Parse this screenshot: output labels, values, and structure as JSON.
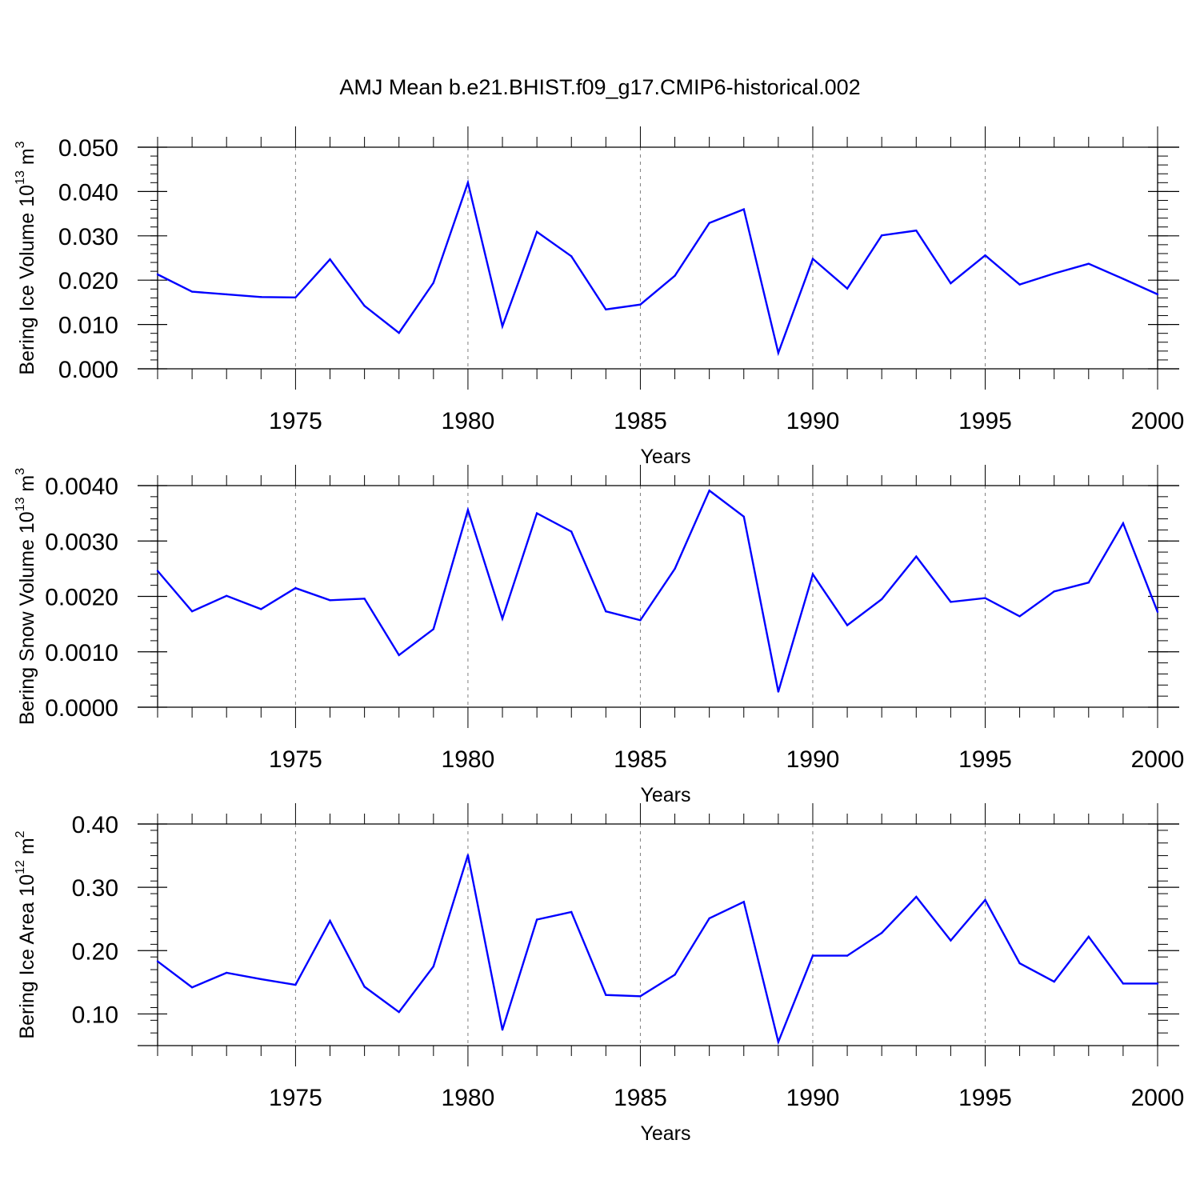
{
  "title": "AMJ Mean b.e21.BHIST.f09_g17.CMIP6-historical.002",
  "colors": {
    "line": "#0000ff",
    "axis": "#000000",
    "grid": "#808080"
  },
  "chart_data": [
    {
      "type": "line",
      "ylabel": {
        "main": "Bering Ice Volume 10",
        "exp": "13",
        "unit": " m",
        "unit_exp": "3"
      },
      "xlabel": "Years",
      "xlim": [
        1971,
        2000
      ],
      "ylim": [
        0.0,
        0.05
      ],
      "xticks": [
        1975,
        1980,
        1985,
        1990,
        1995,
        2000
      ],
      "yticks": [
        0.0,
        0.01,
        0.02,
        0.03,
        0.04,
        0.05
      ],
      "ytick_labels": [
        "0.000",
        "0.010",
        "0.020",
        "0.030",
        "0.040",
        "0.050"
      ],
      "grid": "x-dashed",
      "series": [
        {
          "x": [
            1971,
            1972,
            1973,
            1974,
            1975,
            1976,
            1977,
            1978,
            1979,
            1980,
            1981,
            1982,
            1983,
            1984,
            1985,
            1986,
            1987,
            1988,
            1989,
            1990,
            1991,
            1992,
            1993,
            1994,
            1995,
            1996,
            1997,
            1998,
            1999,
            2000
          ],
          "values": [
            0.0213,
            0.0174,
            0.0168,
            0.0162,
            0.0161,
            0.0247,
            0.0142,
            0.0081,
            0.0194,
            0.042,
            0.0096,
            0.0309,
            0.0254,
            0.0134,
            0.0145,
            0.021,
            0.0329,
            0.036,
            0.0036,
            0.0248,
            0.0181,
            0.0301,
            0.0312,
            0.0193,
            0.0256,
            0.019,
            0.0215,
            0.0237,
            0.0203,
            0.0168
          ]
        }
      ]
    },
    {
      "type": "line",
      "ylabel": {
        "main": "Bering Snow Volume 10",
        "exp": "13",
        "unit": " m",
        "unit_exp": "3"
      },
      "xlabel": "Years",
      "xlim": [
        1971,
        2000
      ],
      "ylim": [
        0.0,
        0.004
      ],
      "xticks": [
        1975,
        1980,
        1985,
        1990,
        1995,
        2000
      ],
      "yticks": [
        0.0,
        0.001,
        0.002,
        0.003,
        0.004
      ],
      "ytick_labels": [
        "0.0000",
        "0.0010",
        "0.0020",
        "0.0030",
        "0.0040"
      ],
      "grid": "x-dashed",
      "series": [
        {
          "x": [
            1971,
            1972,
            1973,
            1974,
            1975,
            1976,
            1977,
            1978,
            1979,
            1980,
            1981,
            1982,
            1983,
            1984,
            1985,
            1986,
            1987,
            1988,
            1989,
            1990,
            1991,
            1992,
            1993,
            1994,
            1995,
            1996,
            1997,
            1998,
            1999,
            2000
          ],
          "values": [
            0.00246,
            0.00173,
            0.00201,
            0.00177,
            0.00215,
            0.00193,
            0.00196,
            0.00094,
            0.00141,
            0.00356,
            0.0016,
            0.0035,
            0.00317,
            0.00173,
            0.00157,
            0.0025,
            0.00391,
            0.00344,
            0.00028,
            0.0024,
            0.00148,
            0.00195,
            0.00272,
            0.0019,
            0.00197,
            0.00164,
            0.00209,
            0.00225,
            0.00332,
            0.00172
          ]
        }
      ]
    },
    {
      "type": "line",
      "ylabel": {
        "main": "Bering Ice Area 10",
        "exp": "12",
        "unit": " m",
        "unit_exp": "2"
      },
      "xlabel": "Years",
      "xlim": [
        1971,
        2000
      ],
      "ylim": [
        0.05,
        0.4
      ],
      "xticks": [
        1975,
        1980,
        1985,
        1990,
        1995,
        2000
      ],
      "yticks": [
        0.1,
        0.2,
        0.3,
        0.4
      ],
      "ytick_labels": [
        "0.10",
        "0.20",
        "0.30",
        "0.40"
      ],
      "grid": "x-dashed",
      "series": [
        {
          "x": [
            1971,
            1972,
            1973,
            1974,
            1975,
            1976,
            1977,
            1978,
            1979,
            1980,
            1981,
            1982,
            1983,
            1984,
            1985,
            1986,
            1987,
            1988,
            1989,
            1990,
            1991,
            1992,
            1993,
            1994,
            1995,
            1996,
            1997,
            1998,
            1999,
            2000
          ],
          "values": [
            0.183,
            0.142,
            0.165,
            0.155,
            0.146,
            0.247,
            0.143,
            0.103,
            0.175,
            0.351,
            0.075,
            0.249,
            0.261,
            0.13,
            0.128,
            0.162,
            0.251,
            0.277,
            0.056,
            0.192,
            0.192,
            0.228,
            0.285,
            0.216,
            0.28,
            0.18,
            0.151,
            0.222,
            0.148,
            0.148
          ]
        }
      ]
    }
  ]
}
